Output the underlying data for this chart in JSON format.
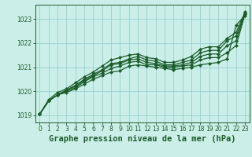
{
  "background_color": "#cceee8",
  "grid_color": "#88cccc",
  "line_color": "#1a5c2a",
  "xlabel": "Graphe pression niveau de la mer (hPa)",
  "xlim": [
    -0.5,
    23.5
  ],
  "ylim": [
    1018.7,
    1023.6
  ],
  "yticks": [
    1019,
    1020,
    1021,
    1022,
    1023
  ],
  "xticks": [
    0,
    1,
    2,
    3,
    4,
    5,
    6,
    7,
    8,
    9,
    10,
    11,
    12,
    13,
    14,
    15,
    16,
    17,
    18,
    19,
    20,
    21,
    22,
    23
  ],
  "series": [
    [
      1019.05,
      1019.6,
      1019.85,
      1019.95,
      1020.1,
      1020.3,
      1020.5,
      1020.65,
      1020.8,
      1020.85,
      1021.05,
      1021.1,
      1021.05,
      1021.0,
      1020.95,
      1020.9,
      1020.95,
      1021.0,
      1021.1,
      1021.15,
      1021.2,
      1021.35,
      1022.75,
      1023.15
    ],
    [
      1019.05,
      1019.6,
      1019.85,
      1020.0,
      1020.15,
      1020.4,
      1020.6,
      1020.75,
      1020.95,
      1021.05,
      1021.2,
      1021.25,
      1021.1,
      1021.1,
      1021.0,
      1021.0,
      1021.05,
      1021.1,
      1021.3,
      1021.4,
      1021.4,
      1021.6,
      1021.9,
      1023.2
    ],
    [
      1019.05,
      1019.6,
      1019.85,
      1020.05,
      1020.2,
      1020.45,
      1020.65,
      1020.85,
      1021.1,
      1021.15,
      1021.3,
      1021.35,
      1021.2,
      1021.15,
      1021.05,
      1021.05,
      1021.1,
      1021.2,
      1021.45,
      1021.55,
      1021.55,
      1021.9,
      1022.1,
      1023.25
    ],
    [
      1019.05,
      1019.6,
      1019.85,
      1020.05,
      1020.25,
      1020.5,
      1020.7,
      1020.9,
      1021.15,
      1021.2,
      1021.35,
      1021.45,
      1021.3,
      1021.25,
      1021.1,
      1021.1,
      1021.2,
      1021.3,
      1021.6,
      1021.7,
      1021.7,
      1022.1,
      1022.3,
      1023.25
    ],
    [
      1019.05,
      1019.65,
      1019.95,
      1020.1,
      1020.35,
      1020.6,
      1020.8,
      1021.05,
      1021.3,
      1021.4,
      1021.5,
      1021.55,
      1021.4,
      1021.35,
      1021.2,
      1021.2,
      1021.3,
      1021.45,
      1021.75,
      1021.85,
      1021.85,
      1022.2,
      1022.45,
      1023.3
    ]
  ],
  "marker": "D",
  "marker_size": 2.2,
  "line_width": 0.9,
  "tick_fontsize": 5.5,
  "xlabel_fontsize": 7.5
}
